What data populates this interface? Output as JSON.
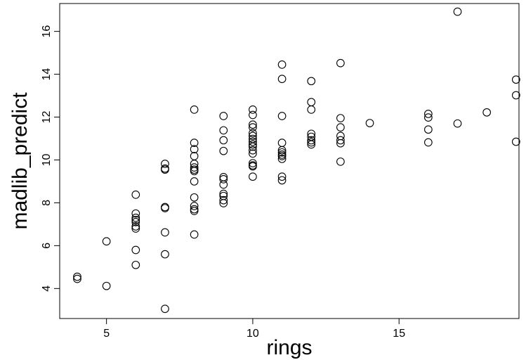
{
  "chart_data": {
    "type": "scatter",
    "title": "",
    "xlabel": "rings",
    "ylabel": "madlib_predict",
    "xlim": [
      3.4,
      19.1
    ],
    "ylim": [
      2.6,
      17.3
    ],
    "xticks": [
      5,
      10,
      15
    ],
    "yticks": [
      4,
      6,
      8,
      10,
      12,
      14,
      16
    ],
    "grid": false,
    "legend": "none",
    "marker": "open-circle",
    "series": [
      {
        "points": [
          [
            4,
            4.55
          ],
          [
            4,
            4.45
          ],
          [
            5,
            6.2
          ],
          [
            5,
            4.12
          ],
          [
            6,
            8.38
          ],
          [
            6,
            7.5
          ],
          [
            6,
            7.3
          ],
          [
            6,
            7.2
          ],
          [
            6,
            7.1
          ],
          [
            6,
            6.9
          ],
          [
            6,
            6.8
          ],
          [
            6,
            5.8
          ],
          [
            6,
            5.1
          ],
          [
            7,
            9.82
          ],
          [
            7,
            9.6
          ],
          [
            7,
            9.55
          ],
          [
            7,
            7.8
          ],
          [
            7,
            7.75
          ],
          [
            7,
            6.62
          ],
          [
            7,
            5.6
          ],
          [
            7,
            3.05
          ],
          [
            8,
            12.35
          ],
          [
            8,
            10.8
          ],
          [
            8,
            10.5
          ],
          [
            8,
            10.18
          ],
          [
            8,
            9.82
          ],
          [
            8,
            9.65
          ],
          [
            8,
            9.55
          ],
          [
            8,
            9.48
          ],
          [
            8,
            9.0
          ],
          [
            8,
            8.25
          ],
          [
            8,
            7.85
          ],
          [
            8,
            7.7
          ],
          [
            8,
            7.62
          ],
          [
            8,
            6.52
          ],
          [
            9,
            12.05
          ],
          [
            9,
            11.38
          ],
          [
            9,
            10.92
          ],
          [
            9,
            10.42
          ],
          [
            9,
            9.2
          ],
          [
            9,
            9.1
          ],
          [
            9,
            8.85
          ],
          [
            9,
            8.42
          ],
          [
            9,
            8.32
          ],
          [
            9,
            8.12
          ],
          [
            9,
            7.98
          ],
          [
            10,
            12.35
          ],
          [
            10,
            12.1
          ],
          [
            10,
            11.65
          ],
          [
            10,
            11.52
          ],
          [
            10,
            11.25
          ],
          [
            10,
            11.12
          ],
          [
            10,
            10.98
          ],
          [
            10,
            10.85
          ],
          [
            10,
            10.72
          ],
          [
            10,
            10.62
          ],
          [
            10,
            10.45
          ],
          [
            10,
            10.3
          ],
          [
            10,
            9.85
          ],
          [
            10,
            9.75
          ],
          [
            10,
            9.7
          ],
          [
            10,
            9.22
          ],
          [
            11,
            14.45
          ],
          [
            11,
            13.78
          ],
          [
            11,
            12.05
          ],
          [
            11,
            10.8
          ],
          [
            11,
            10.45
          ],
          [
            11,
            10.35
          ],
          [
            11,
            10.25
          ],
          [
            11,
            10.18
          ],
          [
            11,
            10.05
          ],
          [
            11,
            9.22
          ],
          [
            11,
            9.05
          ],
          [
            12,
            13.68
          ],
          [
            12,
            12.7
          ],
          [
            12,
            12.35
          ],
          [
            12,
            11.22
          ],
          [
            12,
            11.08
          ],
          [
            12,
            10.92
          ],
          [
            12,
            10.82
          ],
          [
            12,
            10.72
          ],
          [
            13,
            14.52
          ],
          [
            13,
            11.95
          ],
          [
            13,
            11.52
          ],
          [
            13,
            11.12
          ],
          [
            13,
            10.92
          ],
          [
            13,
            10.78
          ],
          [
            13,
            9.92
          ],
          [
            14,
            11.72
          ],
          [
            16,
            12.15
          ],
          [
            16,
            11.98
          ],
          [
            16,
            11.42
          ],
          [
            16,
            10.82
          ],
          [
            17,
            16.92
          ],
          [
            17,
            11.7
          ],
          [
            18,
            12.22
          ],
          [
            19,
            13.75
          ],
          [
            19,
            13.02
          ],
          [
            19,
            10.85
          ]
        ]
      }
    ]
  }
}
